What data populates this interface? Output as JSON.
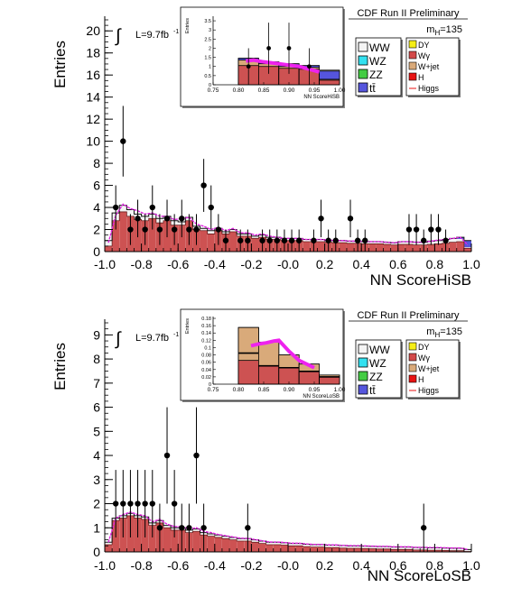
{
  "chart_data": [
    {
      "type": "histogram",
      "experiment_label": "CDF Run II Preliminary",
      "mass_label": "m",
      "mass_sub": "H",
      "mass_value": "=135",
      "lumi_label": "L=9.7fb",
      "lumi_sup": "-1",
      "integral_symbol": "∫",
      "xlabel": "NN ScoreHiSB",
      "ylabel": "Entries",
      "xlim": [
        -1.0,
        1.0
      ],
      "ylim": [
        0,
        21
      ],
      "xticks": [
        "-1.0",
        "-0.8",
        "-0.6",
        "-0.4",
        "-0.2",
        "-0.0",
        "0.2",
        "0.4",
        "0.6",
        "0.8",
        "1.0"
      ],
      "yticks": [
        "0",
        "2",
        "4",
        "6",
        "8",
        "10",
        "12",
        "14",
        "16",
        "18",
        "20"
      ],
      "legend": {
        "left": [
          {
            "label": "WW",
            "color": "#f4f4f4"
          },
          {
            "label": "WZ",
            "color": "#33e1f0"
          },
          {
            "label": "ZZ",
            "color": "#44cc44"
          },
          {
            "label": "tt̄",
            "color": "#5555dd"
          }
        ],
        "right": [
          {
            "label": "DY",
            "color": "#f5ee16",
            "style": "box"
          },
          {
            "label": "Wγ",
            "color": "#d34a4a",
            "style": "box"
          },
          {
            "label": "W+jet",
            "color": "#d9aa7a",
            "style": "box"
          },
          {
            "label": "H",
            "color": "#e81313",
            "style": "box"
          },
          {
            "label": "Higgs",
            "color": "#e81313",
            "style": "line"
          }
        ]
      },
      "bins": {
        "xmin": -1.0,
        "width": 0.04,
        "wgamma": [
          0.5,
          2.8,
          3.6,
          3.2,
          2.9,
          2.8,
          3.0,
          2.6,
          2.8,
          2.4,
          2.4,
          2.8,
          2.0,
          1.9,
          1.6,
          1.9,
          1.6,
          1.8,
          1.4,
          1.4,
          1.2,
          1.3,
          1.1,
          1.1,
          1.0,
          1.0,
          1.0,
          0.9,
          0.9,
          0.9,
          0.85,
          0.8,
          0.8,
          0.75,
          0.75,
          0.7,
          0.7,
          0.7,
          0.65,
          0.6,
          0.65,
          0.65,
          0.6,
          0.6,
          0.65,
          0.7,
          0.75,
          0.85,
          0.9,
          0.3
        ],
        "total": [
          1.0,
          3.5,
          4.2,
          3.8,
          3.4,
          3.2,
          3.4,
          3.0,
          3.2,
          2.8,
          2.7,
          3.1,
          2.3,
          2.1,
          1.9,
          2.1,
          1.8,
          2.0,
          1.6,
          1.6,
          1.4,
          1.5,
          1.3,
          1.3,
          1.2,
          1.2,
          1.2,
          1.1,
          1.1,
          1.1,
          1.0,
          1.0,
          1.0,
          0.95,
          0.95,
          0.9,
          0.9,
          0.9,
          0.85,
          0.8,
          0.9,
          0.9,
          0.85,
          0.85,
          0.95,
          1.0,
          1.1,
          1.2,
          1.3,
          1.0
        ],
        "higgs": [
          0.8,
          3.3,
          4.3,
          3.9,
          3.7,
          3.4,
          3.5,
          3.2,
          3.2,
          2.9,
          3.0,
          3.1,
          2.5,
          2.3,
          2.0,
          2.2,
          1.9,
          2.1,
          1.7,
          1.7,
          1.5,
          1.6,
          1.4,
          1.3,
          1.2,
          1.2,
          1.2,
          1.1,
          1.1,
          1.1,
          1.05,
          1.0,
          1.0,
          0.95,
          0.95,
          0.9,
          0.9,
          0.9,
          0.85,
          0.8,
          0.9,
          0.9,
          0.85,
          0.85,
          0.95,
          1.05,
          1.1,
          1.2,
          1.3,
          0.6
        ],
        "ttbar": [
          0,
          0,
          0,
          0,
          0,
          0,
          0,
          0,
          0,
          0,
          0,
          0,
          0,
          0,
          0,
          0,
          0,
          0,
          0,
          0,
          0,
          0,
          0,
          0,
          0,
          0,
          0,
          0,
          0,
          0,
          0,
          0,
          0,
          0,
          0,
          0,
          0,
          0,
          0,
          0,
          0,
          0,
          0,
          0,
          0,
          0,
          0,
          0,
          0.15,
          0.6
        ]
      },
      "data_points": [
        {
          "x": -0.94,
          "y": 4,
          "err": 2
        },
        {
          "x": -0.9,
          "y": 10,
          "err": 3.2
        },
        {
          "x": -0.86,
          "y": 2,
          "err": 1.4
        },
        {
          "x": -0.82,
          "y": 3,
          "err": 1.7
        },
        {
          "x": -0.78,
          "y": 2,
          "err": 1.4
        },
        {
          "x": -0.74,
          "y": 4,
          "err": 2
        },
        {
          "x": -0.7,
          "y": 2,
          "err": 1.4
        },
        {
          "x": -0.66,
          "y": 3,
          "err": 1.7
        },
        {
          "x": -0.62,
          "y": 2,
          "err": 1.4
        },
        {
          "x": -0.58,
          "y": 3,
          "err": 1.7
        },
        {
          "x": -0.54,
          "y": 2,
          "err": 1.4
        },
        {
          "x": -0.5,
          "y": 2,
          "err": 1.4
        },
        {
          "x": -0.46,
          "y": 6,
          "err": 2.4
        },
        {
          "x": -0.42,
          "y": 4,
          "err": 2
        },
        {
          "x": -0.38,
          "y": 2,
          "err": 1.4
        },
        {
          "x": -0.34,
          "y": 1,
          "err": 1
        },
        {
          "x": -0.26,
          "y": 1,
          "err": 1
        },
        {
          "x": -0.22,
          "y": 1,
          "err": 1
        },
        {
          "x": -0.14,
          "y": 1,
          "err": 1
        },
        {
          "x": -0.1,
          "y": 1,
          "err": 1
        },
        {
          "x": -0.06,
          "y": 1,
          "err": 1
        },
        {
          "x": -0.02,
          "y": 1,
          "err": 1
        },
        {
          "x": 0.02,
          "y": 1,
          "err": 1
        },
        {
          "x": 0.06,
          "y": 1,
          "err": 1
        },
        {
          "x": 0.14,
          "y": 1,
          "err": 1
        },
        {
          "x": 0.18,
          "y": 3,
          "err": 1.7
        },
        {
          "x": 0.22,
          "y": 1,
          "err": 1
        },
        {
          "x": 0.26,
          "y": 1,
          "err": 1
        },
        {
          "x": 0.34,
          "y": 3,
          "err": 1.7
        },
        {
          "x": 0.38,
          "y": 1,
          "err": 1
        },
        {
          "x": 0.42,
          "y": 1,
          "err": 1
        },
        {
          "x": 0.66,
          "y": 2,
          "err": 1.4
        },
        {
          "x": 0.7,
          "y": 2,
          "err": 1.4
        },
        {
          "x": 0.74,
          "y": 1,
          "err": 1
        },
        {
          "x": 0.78,
          "y": 2,
          "err": 1.4
        },
        {
          "x": 0.82,
          "y": 2,
          "err": 1.4
        },
        {
          "x": 0.86,
          "y": 1,
          "err": 1
        }
      ],
      "inset": {
        "xlabel": "NN ScoreHiSB",
        "ylabel": "Entries",
        "xlim": [
          0.75,
          1.0
        ],
        "ylim": [
          0,
          3.75
        ],
        "xticks": [
          "0.75",
          "0.80",
          "0.85",
          "0.90",
          "0.95",
          "1.00"
        ],
        "yticks": [
          "0",
          "0.5",
          "1",
          "1.5",
          "2",
          "2.5",
          "3",
          "3.5"
        ],
        "bins_edges": [
          0.8,
          0.84,
          0.88,
          0.92,
          0.96,
          1.0
        ],
        "wgamma": [
          1.05,
          1.0,
          0.9,
          0.85,
          0.25
        ],
        "wjet": [
          1.35,
          1.15,
          1.0,
          0.95,
          0.3
        ],
        "ww_top": [
          1.45,
          1.25,
          1.15,
          1.05,
          0.8
        ],
        "ttbar_top": [
          1.45,
          1.25,
          1.15,
          1.05,
          0.75
        ],
        "higgs_curve": [
          [
            0.815,
            1.3
          ],
          [
            0.83,
            1.35
          ],
          [
            0.85,
            1.25
          ],
          [
            0.88,
            1.15
          ],
          [
            0.92,
            1.0
          ],
          [
            0.96,
            0.7
          ]
        ],
        "data_points": [
          {
            "x": 0.82,
            "y": 1,
            "err": 1
          },
          {
            "x": 0.86,
            "y": 2,
            "err": 1.4
          },
          {
            "x": 0.9,
            "y": 2,
            "err": 1.4
          },
          {
            "x": 0.94,
            "y": 1,
            "err": 1
          }
        ]
      }
    },
    {
      "type": "histogram",
      "experiment_label": "CDF Run II Preliminary",
      "mass_label": "m",
      "mass_sub": "H",
      "mass_value": "=135",
      "lumi_label": "L=9.7fb",
      "lumi_sup": "-1",
      "integral_symbol": "∫",
      "xlabel": "NN ScoreLoSB",
      "ylabel": "Entries",
      "xlim": [
        -1.0,
        1.0
      ],
      "ylim": [
        0,
        9.5
      ],
      "xticks": [
        "-1.0",
        "-0.8",
        "-0.6",
        "-0.4",
        "-0.2",
        "-0.0",
        "0.2",
        "0.4",
        "0.6",
        "0.8",
        "1.0"
      ],
      "yticks": [
        "0",
        "1",
        "2",
        "3",
        "4",
        "5",
        "6",
        "7",
        "8",
        "9"
      ],
      "legend": {
        "left": [
          {
            "label": "WW",
            "color": "#f4f4f4"
          },
          {
            "label": "WZ",
            "color": "#33e1f0"
          },
          {
            "label": "ZZ",
            "color": "#44cc44"
          },
          {
            "label": "tt̄",
            "color": "#5555dd"
          }
        ],
        "right": [
          {
            "label": "DY",
            "color": "#f5ee16",
            "style": "box"
          },
          {
            "label": "Wγ",
            "color": "#d34a4a",
            "style": "box"
          },
          {
            "label": "W+jet",
            "color": "#d9aa7a",
            "style": "box"
          },
          {
            "label": "H",
            "color": "#e81313",
            "style": "box"
          },
          {
            "label": "Higgs",
            "color": "#e81313",
            "style": "line"
          }
        ]
      },
      "bins": {
        "xmin": -1.0,
        "width": 0.04,
        "wgamma": [
          0.3,
          1.3,
          1.4,
          1.5,
          1.4,
          1.35,
          1.1,
          1.2,
          1.0,
          0.9,
          0.9,
          0.8,
          0.85,
          0.7,
          0.65,
          0.6,
          0.55,
          0.5,
          0.45,
          0.45,
          0.4,
          0.35,
          0.3,
          0.3,
          0.28,
          0.25,
          0.25,
          0.22,
          0.2,
          0.2,
          0.18,
          0.18,
          0.16,
          0.15,
          0.15,
          0.14,
          0.13,
          0.12,
          0.12,
          0.1,
          0.1,
          0.1,
          0.08,
          0.08,
          0.07,
          0.07,
          0.06,
          0.05,
          0.05,
          0.02
        ],
        "total": [
          0.4,
          1.4,
          1.5,
          1.6,
          1.5,
          1.45,
          1.2,
          1.3,
          1.1,
          1.0,
          1.0,
          0.9,
          0.95,
          0.8,
          0.75,
          0.7,
          0.65,
          0.6,
          0.55,
          0.55,
          0.5,
          0.45,
          0.4,
          0.4,
          0.38,
          0.35,
          0.35,
          0.32,
          0.3,
          0.3,
          0.28,
          0.28,
          0.26,
          0.25,
          0.25,
          0.24,
          0.23,
          0.22,
          0.22,
          0.2,
          0.2,
          0.2,
          0.18,
          0.18,
          0.17,
          0.17,
          0.16,
          0.15,
          0.15,
          0.1
        ],
        "higgs": [
          0.4,
          1.4,
          1.55,
          1.65,
          1.55,
          1.5,
          1.25,
          1.35,
          1.15,
          1.05,
          1.05,
          0.95,
          1.0,
          0.85,
          0.8,
          0.72,
          0.67,
          0.62,
          0.57,
          0.56,
          0.51,
          0.46,
          0.41,
          0.41,
          0.39,
          0.36,
          0.36,
          0.33,
          0.31,
          0.31,
          0.29,
          0.29,
          0.27,
          0.26,
          0.26,
          0.25,
          0.24,
          0.23,
          0.23,
          0.21,
          0.21,
          0.21,
          0.19,
          0.19,
          0.18,
          0.18,
          0.17,
          0.16,
          0.16,
          0.1
        ],
        "ttbar": []
      },
      "data_points": [
        {
          "x": -0.94,
          "y": 2,
          "err": 1.4
        },
        {
          "x": -0.9,
          "y": 2,
          "err": 1.4
        },
        {
          "x": -0.86,
          "y": 2,
          "err": 1.4
        },
        {
          "x": -0.82,
          "y": 2,
          "err": 1.4
        },
        {
          "x": -0.78,
          "y": 2,
          "err": 1.4
        },
        {
          "x": -0.74,
          "y": 2,
          "err": 1.4
        },
        {
          "x": -0.7,
          "y": 1,
          "err": 1
        },
        {
          "x": -0.66,
          "y": 4,
          "err": 2
        },
        {
          "x": -0.62,
          "y": 2,
          "err": 1.4
        },
        {
          "x": -0.58,
          "y": 1,
          "err": 1
        },
        {
          "x": -0.54,
          "y": 1,
          "err": 1
        },
        {
          "x": -0.5,
          "y": 4,
          "err": 2
        },
        {
          "x": -0.46,
          "y": 1,
          "err": 1
        },
        {
          "x": -0.22,
          "y": 1,
          "err": 1
        },
        {
          "x": 0.74,
          "y": 1,
          "err": 1
        }
      ],
      "inset": {
        "xlabel": "NN ScoreLoSB",
        "ylabel": "Entries",
        "xlim": [
          0.75,
          1.0
        ],
        "ylim": [
          0,
          0.185
        ],
        "xticks": [
          "0.75",
          "0.80",
          "0.85",
          "0.90",
          "0.95",
          "1.00"
        ],
        "yticks": [
          "0",
          "0.02",
          "0.04",
          "0.06",
          "0.08",
          "0.1",
          "0.12",
          "0.14",
          "0.16",
          "0.18"
        ],
        "bins_edges": [
          0.8,
          0.84,
          0.88,
          0.92,
          0.96,
          1.0
        ],
        "wgamma": [
          0.065,
          0.05,
          0.045,
          0.035,
          0.02
        ],
        "wjet": [
          0.155,
          0.115,
          0.08,
          0.055,
          0.025
        ],
        "ww_top": [
          0.155,
          0.115,
          0.08,
          0.055,
          0.025
        ],
        "ttbar_top": [
          0,
          0,
          0,
          0,
          0
        ],
        "black_lines": [
          0.085,
          0.05,
          0.045,
          0.035,
          0.02
        ],
        "higgs_curve": [
          [
            0.825,
            0.105
          ],
          [
            0.84,
            0.11
          ],
          [
            0.855,
            0.113
          ],
          [
            0.87,
            0.118
          ],
          [
            0.88,
            0.12
          ],
          [
            0.9,
            0.09
          ],
          [
            0.92,
            0.065
          ],
          [
            0.95,
            0.045
          ]
        ],
        "data_points": []
      }
    }
  ]
}
